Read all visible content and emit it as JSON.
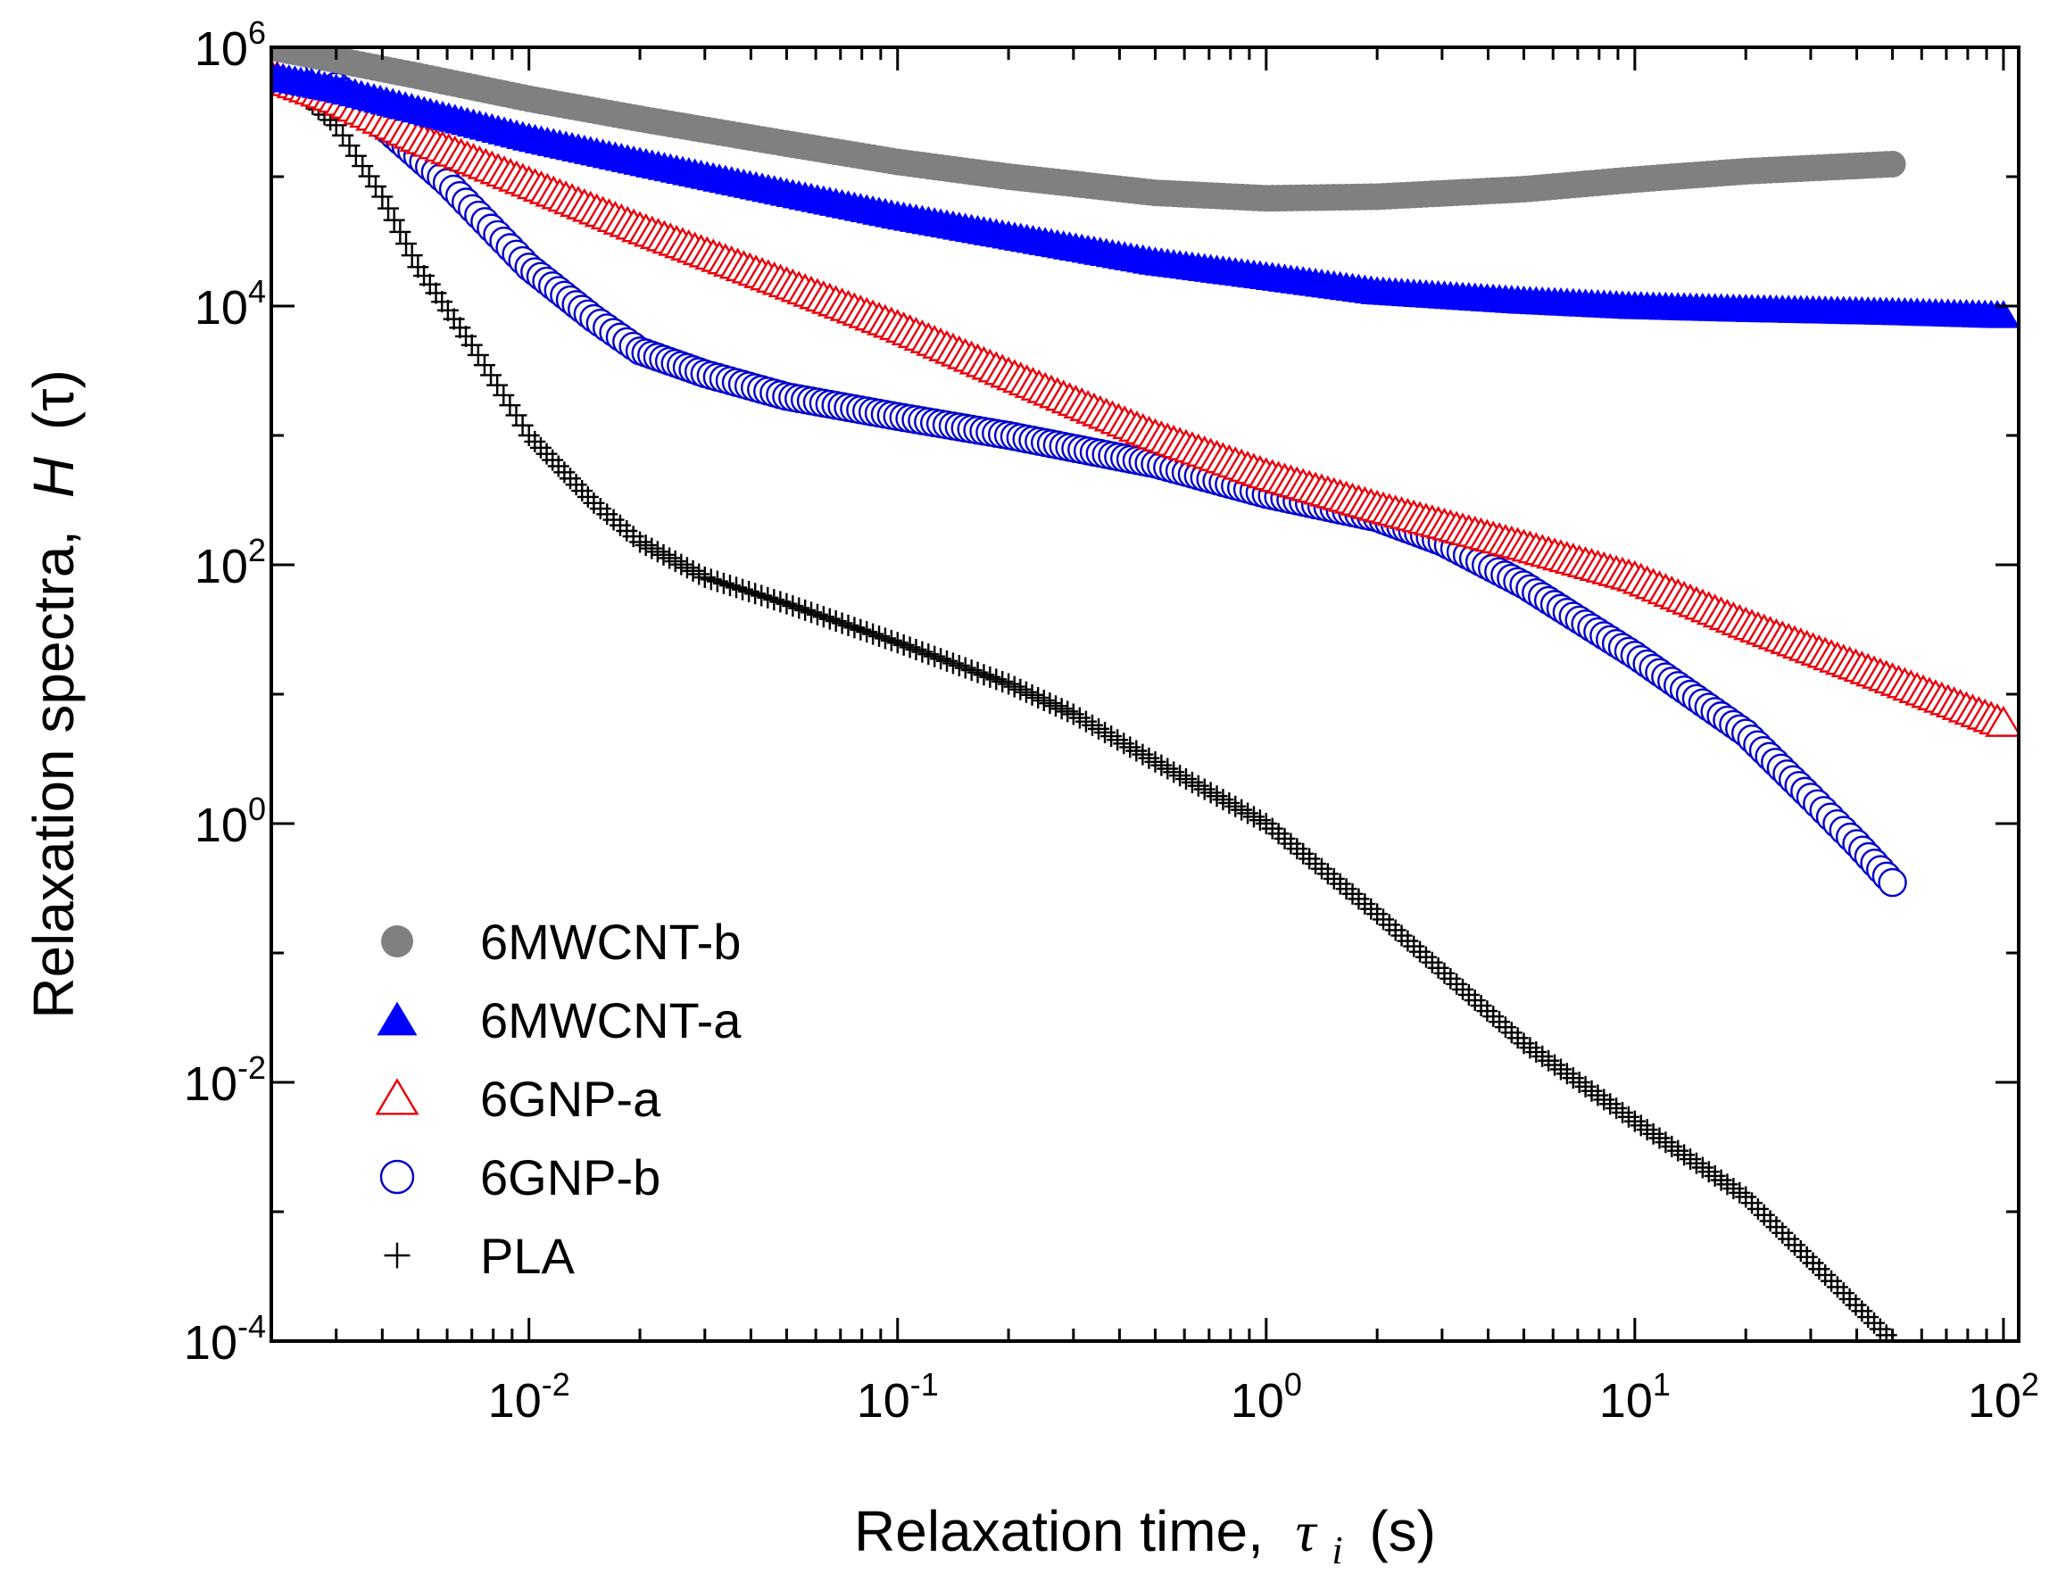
{
  "chart_data": {
    "type": "scatter",
    "title": "",
    "xlabel": {
      "prefix": "Relaxation time,",
      "symbol": "τ",
      "subscript": "i",
      "suffix": "(s)"
    },
    "ylabel": {
      "prefix": "Relaxation spectra,",
      "symbol": "H",
      "suffix": "(τ)"
    },
    "x_scale": "log",
    "y_scale": "log",
    "xlim": [
      0.002,
      110
    ],
    "ylim": [
      0.0001,
      1000000
    ],
    "x_ticks": [
      {
        "value": 0.01,
        "base": "10",
        "exp": "-2"
      },
      {
        "value": 0.1,
        "base": "10",
        "exp": "-1"
      },
      {
        "value": 1,
        "base": "10",
        "exp": "0"
      },
      {
        "value": 10,
        "base": "10",
        "exp": "1"
      },
      {
        "value": 100,
        "base": "10",
        "exp": "2"
      }
    ],
    "y_ticks": [
      {
        "value": 0.0001,
        "base": "10",
        "exp": "-4"
      },
      {
        "value": 0.01,
        "base": "10",
        "exp": "-2"
      },
      {
        "value": 1,
        "base": "10",
        "exp": "0"
      },
      {
        "value": 100,
        "base": "10",
        "exp": "2"
      },
      {
        "value": 10000,
        "base": "10",
        "exp": "4"
      },
      {
        "value": 1000000,
        "base": "10",
        "exp": "6"
      }
    ],
    "grid": false,
    "legend_position": "bottom-left",
    "series": [
      {
        "name": "6MWCNT-b",
        "marker": "filled-circle",
        "color": "#808080",
        "points": [
          [
            0.002,
            1000000
          ],
          [
            0.003,
            800000
          ],
          [
            0.005,
            600000
          ],
          [
            0.01,
            400000
          ],
          [
            0.02,
            280000
          ],
          [
            0.05,
            180000
          ],
          [
            0.1,
            130000
          ],
          [
            0.2,
            100000
          ],
          [
            0.5,
            75000
          ],
          [
            1,
            68000
          ],
          [
            2,
            70000
          ],
          [
            5,
            80000
          ],
          [
            10,
            95000
          ],
          [
            20,
            110000
          ],
          [
            50,
            125000
          ]
        ]
      },
      {
        "name": "6MWCNT-a",
        "marker": "filled-triangle",
        "color": "#0000ff",
        "points": [
          [
            0.002,
            600000
          ],
          [
            0.003,
            480000
          ],
          [
            0.005,
            330000
          ],
          [
            0.01,
            200000
          ],
          [
            0.02,
            130000
          ],
          [
            0.05,
            75000
          ],
          [
            0.1,
            50000
          ],
          [
            0.2,
            35000
          ],
          [
            0.5,
            22000
          ],
          [
            1,
            17000
          ],
          [
            2,
            13000
          ],
          [
            5,
            11000
          ],
          [
            10,
            10000
          ],
          [
            20,
            9500
          ],
          [
            50,
            9000
          ],
          [
            100,
            8500
          ]
        ]
      },
      {
        "name": "6GNP-a",
        "marker": "open-triangle",
        "color": "#e8000b",
        "points": [
          [
            0.002,
            600000
          ],
          [
            0.003,
            400000
          ],
          [
            0.005,
            200000
          ],
          [
            0.01,
            90000
          ],
          [
            0.02,
            40000
          ],
          [
            0.05,
            15000
          ],
          [
            0.1,
            7000
          ],
          [
            0.2,
            3000
          ],
          [
            0.5,
            1000
          ],
          [
            1,
            500
          ],
          [
            2,
            280
          ],
          [
            5,
            140
          ],
          [
            10,
            80
          ],
          [
            20,
            35
          ],
          [
            50,
            13
          ],
          [
            100,
            6
          ]
        ]
      },
      {
        "name": "6GNP-b",
        "marker": "open-circle",
        "color": "#0000cc",
        "points": [
          [
            0.0025,
            1000000
          ],
          [
            0.003,
            500000
          ],
          [
            0.004,
            250000
          ],
          [
            0.006,
            90000
          ],
          [
            0.01,
            20000
          ],
          [
            0.015,
            8000
          ],
          [
            0.02,
            4500
          ],
          [
            0.03,
            3000
          ],
          [
            0.05,
            2000
          ],
          [
            0.1,
            1400
          ],
          [
            0.2,
            1000
          ],
          [
            0.5,
            600
          ],
          [
            1,
            350
          ],
          [
            2,
            230
          ],
          [
            3,
            150
          ],
          [
            5,
            70
          ],
          [
            10,
            20
          ],
          [
            20,
            5
          ],
          [
            30,
            1.6
          ],
          [
            40,
            0.7
          ],
          [
            50,
            0.35
          ]
        ]
      },
      {
        "name": "PLA",
        "marker": "plus",
        "color": "#000000",
        "points": [
          [
            0.002,
            700000
          ],
          [
            0.003,
            250000
          ],
          [
            0.004,
            70000
          ],
          [
            0.005,
            20000
          ],
          [
            0.007,
            5000
          ],
          [
            0.01,
            1000
          ],
          [
            0.015,
            300
          ],
          [
            0.02,
            150
          ],
          [
            0.03,
            80
          ],
          [
            0.05,
            50
          ],
          [
            0.1,
            25
          ],
          [
            0.2,
            12
          ],
          [
            0.3,
            7
          ],
          [
            0.5,
            3
          ],
          [
            1,
            1
          ],
          [
            2,
            0.2
          ],
          [
            5,
            0.02
          ],
          [
            10,
            0.005
          ],
          [
            20,
            0.0013
          ],
          [
            50,
            0.0001
          ]
        ]
      }
    ]
  }
}
